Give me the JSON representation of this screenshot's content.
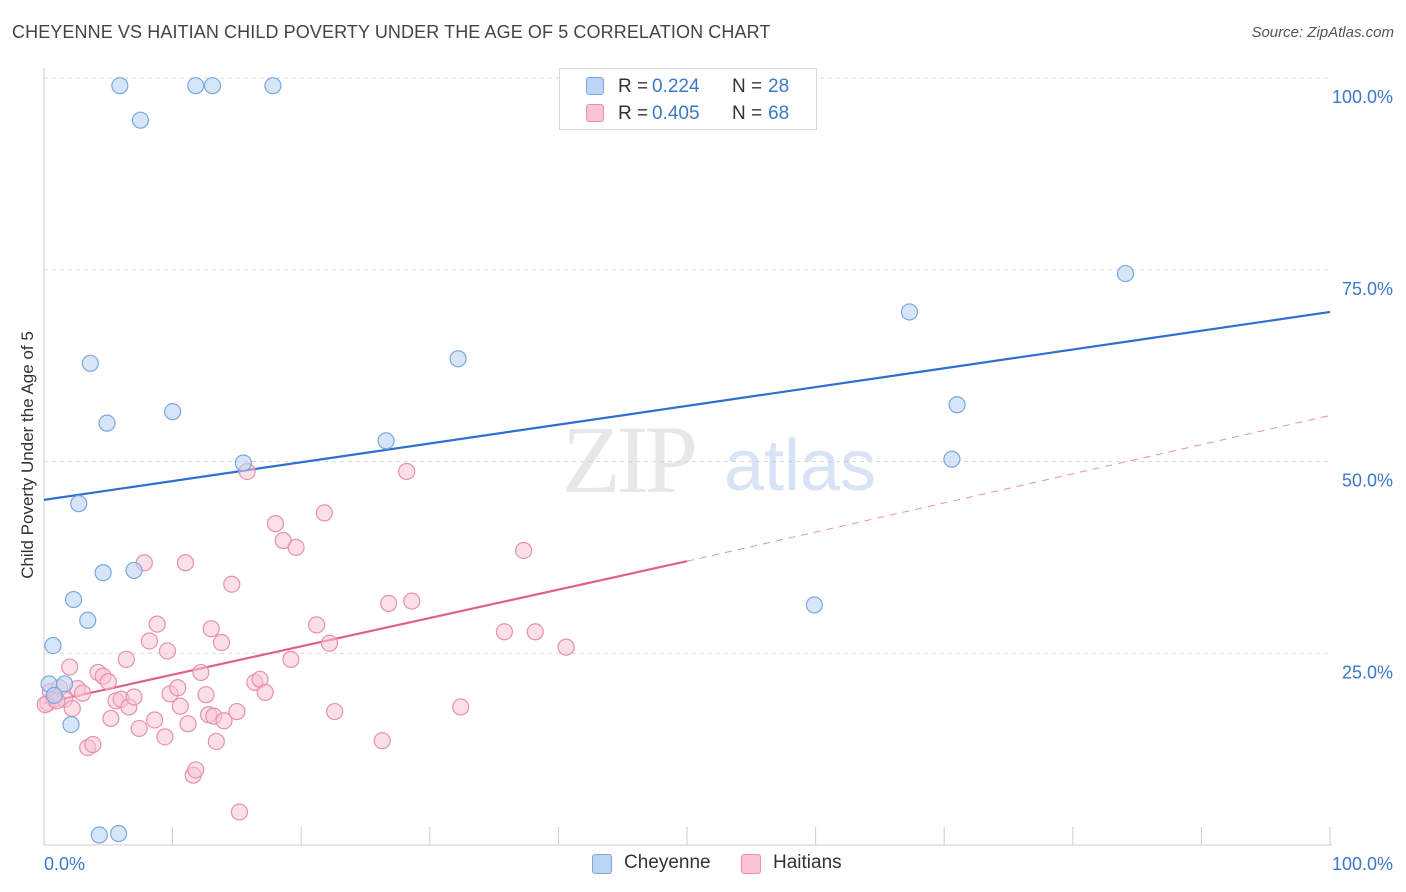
{
  "title": "CHEYENNE VS HAITIAN CHILD POVERTY UNDER THE AGE OF 5 CORRELATION CHART",
  "source": "Source: ZipAtlas.com",
  "watermark": {
    "zip": "ZIP",
    "atlas": "atlas"
  },
  "colors": {
    "cheyenne_fill": "#bcd4f5",
    "cheyenne_stroke": "#7aa7de",
    "cheyenne_line": "#2e6fd0",
    "haitians_fill": "#f8c4d4",
    "haitians_stroke": "#e890ae",
    "haitians_line": "#e0608c",
    "axis_text": "#3b78c8",
    "grid": "#d9d9d9"
  },
  "legend": {
    "rows": [
      {
        "r_label": "R =",
        "r_value": "0.224",
        "n_label": "N =",
        "n_value": "28"
      },
      {
        "r_label": "R =",
        "r_value": "0.405",
        "n_label": "N =",
        "n_value": "68"
      }
    ]
  },
  "bottom_legend": [
    {
      "label": "Cheyenne"
    },
    {
      "label": "Haitians"
    }
  ],
  "chart_data": {
    "type": "scatter",
    "title": "CHEYENNE VS HAITIAN CHILD POVERTY UNDER THE AGE OF 5 CORRELATION CHART",
    "xlabel": "",
    "ylabel": "Child Poverty Under the Age of 5",
    "xlim": [
      0,
      100
    ],
    "ylim": [
      0,
      100
    ],
    "x_tick_labels": [
      {
        "value": 0,
        "label": "0.0%"
      },
      {
        "value": 100,
        "label": "100.0%"
      }
    ],
    "y_tick_labels": [
      {
        "value": 25,
        "label": "25.0%"
      },
      {
        "value": 50,
        "label": "50.0%"
      },
      {
        "value": 75,
        "label": "75.0%"
      },
      {
        "value": 100,
        "label": "100.0%"
      }
    ],
    "grid": true,
    "legend_position": "top-center",
    "series": [
      {
        "name": "Cheyenne",
        "r": 0.224,
        "n": 28,
        "trend": {
          "x0": 0,
          "y0": 45.0,
          "x1": 100,
          "y1": 69.5,
          "style": "solid"
        },
        "points": [
          [
            5.9,
            99.0
          ],
          [
            11.8,
            99.0
          ],
          [
            13.1,
            99.0
          ],
          [
            17.8,
            99.0
          ],
          [
            7.5,
            94.5
          ],
          [
            84.1,
            74.5
          ],
          [
            67.3,
            69.5
          ],
          [
            3.6,
            62.8
          ],
          [
            32.2,
            63.4
          ],
          [
            10.0,
            56.5
          ],
          [
            4.9,
            55.0
          ],
          [
            71.0,
            57.4
          ],
          [
            26.6,
            52.7
          ],
          [
            15.5,
            49.8
          ],
          [
            70.6,
            50.3
          ],
          [
            2.7,
            44.5
          ],
          [
            4.6,
            35.5
          ],
          [
            7.0,
            35.8
          ],
          [
            2.3,
            32.0
          ],
          [
            3.4,
            29.3
          ],
          [
            59.9,
            31.3
          ],
          [
            0.7,
            26.0
          ],
          [
            0.4,
            21.0
          ],
          [
            1.6,
            21.0
          ],
          [
            0.8,
            19.5
          ],
          [
            2.1,
            15.7
          ],
          [
            4.3,
            1.3
          ],
          [
            5.8,
            1.5
          ]
        ]
      },
      {
        "name": "Haitians",
        "r": 0.405,
        "n": 68,
        "trend": {
          "x0": 0,
          "y0": 18.5,
          "x1": 50,
          "y1": 37.0,
          "style": "solid",
          "extension_to_x": 100,
          "extension_y": 56.0,
          "extension_style": "dashed"
        },
        "points": [
          [
            0.3,
            18.5
          ],
          [
            0.5,
            20.0
          ],
          [
            0.8,
            19.0
          ],
          [
            1.2,
            20.5
          ],
          [
            1.6,
            19.0
          ],
          [
            2.0,
            23.2
          ],
          [
            2.2,
            17.8
          ],
          [
            2.6,
            20.4
          ],
          [
            3.0,
            19.8
          ],
          [
            3.4,
            12.7
          ],
          [
            3.8,
            13.1
          ],
          [
            4.2,
            22.5
          ],
          [
            4.6,
            22.0
          ],
          [
            5.0,
            21.3
          ],
          [
            5.2,
            16.5
          ],
          [
            5.6,
            18.8
          ],
          [
            6.0,
            19.0
          ],
          [
            6.4,
            24.2
          ],
          [
            6.6,
            18.0
          ],
          [
            7.0,
            19.3
          ],
          [
            7.4,
            15.2
          ],
          [
            7.8,
            36.8
          ],
          [
            8.2,
            26.6
          ],
          [
            8.6,
            16.3
          ],
          [
            8.8,
            28.8
          ],
          [
            9.4,
            14.1
          ],
          [
            9.6,
            25.3
          ],
          [
            9.8,
            19.7
          ],
          [
            10.4,
            20.5
          ],
          [
            10.6,
            18.1
          ],
          [
            11.0,
            36.8
          ],
          [
            11.2,
            15.8
          ],
          [
            11.6,
            9.1
          ],
          [
            11.8,
            9.8
          ],
          [
            12.2,
            22.5
          ],
          [
            12.6,
            19.6
          ],
          [
            12.8,
            17.0
          ],
          [
            13.0,
            28.2
          ],
          [
            13.2,
            16.8
          ],
          [
            13.4,
            13.5
          ],
          [
            13.8,
            26.4
          ],
          [
            14.0,
            16.2
          ],
          [
            14.6,
            34.0
          ],
          [
            15.0,
            17.4
          ],
          [
            15.2,
            4.3
          ],
          [
            15.8,
            48.7
          ],
          [
            16.4,
            21.2
          ],
          [
            16.8,
            21.6
          ],
          [
            17.2,
            19.9
          ],
          [
            18.0,
            41.9
          ],
          [
            18.6,
            39.7
          ],
          [
            19.2,
            24.2
          ],
          [
            19.6,
            38.8
          ],
          [
            21.2,
            28.7
          ],
          [
            21.8,
            43.3
          ],
          [
            22.2,
            26.3
          ],
          [
            22.6,
            17.4
          ],
          [
            26.3,
            13.6
          ],
          [
            26.8,
            31.5
          ],
          [
            28.2,
            48.7
          ],
          [
            28.6,
            31.8
          ],
          [
            32.4,
            18.0
          ],
          [
            35.8,
            27.8
          ],
          [
            37.3,
            38.4
          ],
          [
            38.2,
            27.8
          ],
          [
            40.6,
            25.8
          ],
          [
            0.1,
            18.3
          ],
          [
            1.0,
            18.8
          ]
        ]
      }
    ]
  }
}
